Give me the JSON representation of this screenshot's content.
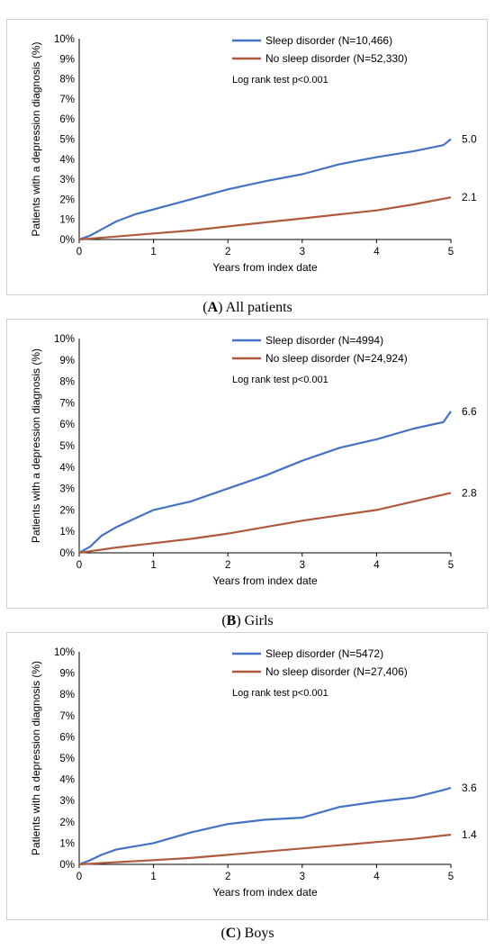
{
  "figures": [
    {
      "caption_letter": "A",
      "caption_text": "All patients",
      "chart_data": {
        "type": "line",
        "xlabel": "Years from index date",
        "ylabel": "Patients with a depression diagnosis (%)",
        "xlim": [
          0,
          5
        ],
        "ylim": [
          0,
          10
        ],
        "x_ticks": [
          "0",
          "1",
          "2",
          "3",
          "4",
          "5"
        ],
        "y_ticks": [
          "0%",
          "1%",
          "2%",
          "3%",
          "4%",
          "5%",
          "6%",
          "7%",
          "8%",
          "9%",
          "10%"
        ],
        "annotation": "Log rank test p<0.001",
        "series": [
          {
            "name": "Sleep disorder (N=10,466)",
            "color": "#4472C4",
            "end_label": "5.0",
            "x": [
              0,
              0.15,
              0.3,
              0.5,
              0.75,
              1,
              1.5,
              2,
              2.5,
              3,
              3.5,
              4,
              4.5,
              4.9,
              5
            ],
            "y": [
              0,
              0.2,
              0.5,
              0.9,
              1.25,
              1.5,
              2.0,
              2.5,
              2.9,
              3.25,
              3.75,
              4.1,
              4.4,
              4.7,
              5.0
            ]
          },
          {
            "name": "No sleep disorder (N=52,330)",
            "color": "#B05A3C",
            "end_label": "2.1",
            "x": [
              0,
              0.5,
              1,
              1.5,
              2,
              2.5,
              3,
              3.5,
              4,
              4.5,
              5
            ],
            "y": [
              0,
              0.15,
              0.3,
              0.45,
              0.65,
              0.85,
              1.05,
              1.25,
              1.45,
              1.75,
              2.1
            ]
          }
        ]
      }
    },
    {
      "caption_letter": "B",
      "caption_text": "Girls",
      "chart_data": {
        "type": "line",
        "xlabel": "Years from index date",
        "ylabel": "Patients with a depression diagnosis (%)",
        "xlim": [
          0,
          5
        ],
        "ylim": [
          0,
          10
        ],
        "x_ticks": [
          "0",
          "1",
          "2",
          "3",
          "4",
          "5"
        ],
        "y_ticks": [
          "0%",
          "1%",
          "2%",
          "3%",
          "4%",
          "5%",
          "6%",
          "7%",
          "8%",
          "9%",
          "10%"
        ],
        "annotation": "Log rank test p<0.001",
        "series": [
          {
            "name": "Sleep disorder (N=4994)",
            "color": "#4472C4",
            "end_label": "6.6",
            "x": [
              0,
              0.15,
              0.3,
              0.5,
              0.75,
              1,
              1.5,
              2,
              2.5,
              3,
              3.5,
              4,
              4.5,
              4.9,
              5
            ],
            "y": [
              0,
              0.3,
              0.8,
              1.2,
              1.6,
              2.0,
              2.4,
              3.0,
              3.6,
              4.3,
              4.9,
              5.3,
              5.8,
              6.1,
              6.6
            ]
          },
          {
            "name": "No sleep disorder (N=24,924)",
            "color": "#B05A3C",
            "end_label": "2.8",
            "x": [
              0,
              0.5,
              1,
              1.5,
              2,
              2.5,
              3,
              3.5,
              4,
              4.5,
              5
            ],
            "y": [
              0,
              0.25,
              0.45,
              0.65,
              0.9,
              1.2,
              1.5,
              1.75,
              2.0,
              2.4,
              2.8
            ]
          }
        ]
      }
    },
    {
      "caption_letter": "C",
      "caption_text": "Boys",
      "chart_data": {
        "type": "line",
        "xlabel": "Years from index date",
        "ylabel": "Patients with a depression diagnosis (%)",
        "xlim": [
          0,
          5
        ],
        "ylim": [
          0,
          10
        ],
        "x_ticks": [
          "0",
          "1",
          "2",
          "3",
          "4",
          "5"
        ],
        "y_ticks": [
          "0%",
          "1%",
          "2%",
          "3%",
          "4%",
          "5%",
          "6%",
          "7%",
          "8%",
          "9%",
          "10%"
        ],
        "annotation": "Log rank test p<0.001",
        "series": [
          {
            "name": "Sleep disorder (N=5472)",
            "color": "#4472C4",
            "end_label": "3.6",
            "x": [
              0,
              0.15,
              0.3,
              0.5,
              0.75,
              1,
              1.5,
              2,
              2.5,
              3,
              3.5,
              4,
              4.5,
              4.9,
              5
            ],
            "y": [
              0,
              0.2,
              0.45,
              0.7,
              0.85,
              1.0,
              1.5,
              1.9,
              2.1,
              2.2,
              2.7,
              2.95,
              3.15,
              3.5,
              3.6
            ]
          },
          {
            "name": "No sleep disorder (N=27,406)",
            "color": "#B05A3C",
            "end_label": "1.4",
            "x": [
              0,
              0.5,
              1,
              1.5,
              2,
              2.5,
              3,
              3.5,
              4,
              4.5,
              5
            ],
            "y": [
              0,
              0.1,
              0.2,
              0.3,
              0.45,
              0.6,
              0.75,
              0.9,
              1.05,
              1.2,
              1.4
            ]
          }
        ]
      }
    }
  ]
}
